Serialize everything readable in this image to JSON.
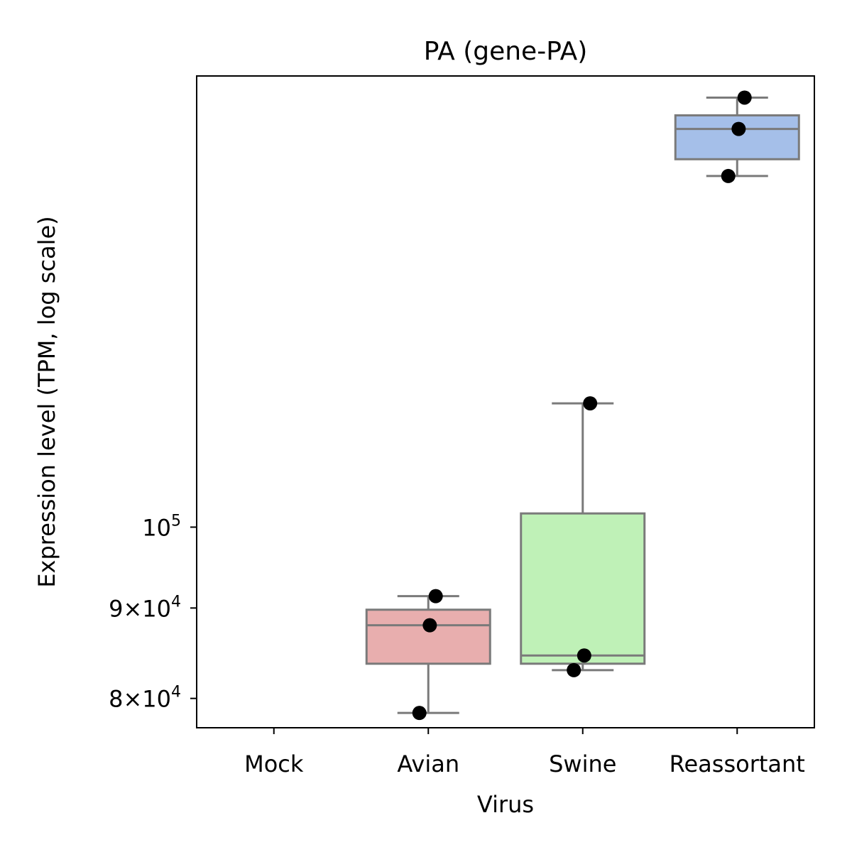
{
  "chart_data": {
    "type": "box",
    "title": "PA (gene-PA)",
    "xlabel": "Virus",
    "ylabel": "Expression level (TPM, log scale)",
    "y_scale": "log",
    "ylim": [
      77000,
      180000
    ],
    "y_ticks": [
      {
        "value": 80000,
        "mantissa": "8",
        "times": "×",
        "base": "10",
        "exp": "4"
      },
      {
        "value": 90000,
        "mantissa": "9",
        "times": "×",
        "base": "10",
        "exp": "4"
      },
      {
        "value": 100000,
        "mantissa": "",
        "times": "",
        "base": "10",
        "exp": "5"
      }
    ],
    "categories": [
      "Mock",
      "Avian",
      "Swine",
      "Reassortant"
    ],
    "boxes": [
      {
        "category": "Mock",
        "color": "#ffffff",
        "stats": null,
        "points": []
      },
      {
        "category": "Avian",
        "color": "#e8aeae",
        "stats": {
          "whisker_low": 78500,
          "q1": 83700,
          "median": 88000,
          "q3": 89800,
          "whisker_high": 91400
        },
        "points": [
          78500,
          88000,
          91400
        ]
      },
      {
        "category": "Swine",
        "color": "#bff1b7",
        "stats": {
          "whisker_low": 83000,
          "q1": 83700,
          "median": 84600,
          "q3": 101800,
          "whisker_high": 117500
        },
        "points": [
          83000,
          84600,
          117500
        ]
      },
      {
        "category": "Reassortant",
        "color": "#a5bfe9",
        "stats": {
          "whisker_low": 158000,
          "q1": 161500,
          "median": 168000,
          "q3": 171000,
          "whisker_high": 175000
        },
        "points": [
          158000,
          168000,
          175000
        ]
      }
    ]
  }
}
